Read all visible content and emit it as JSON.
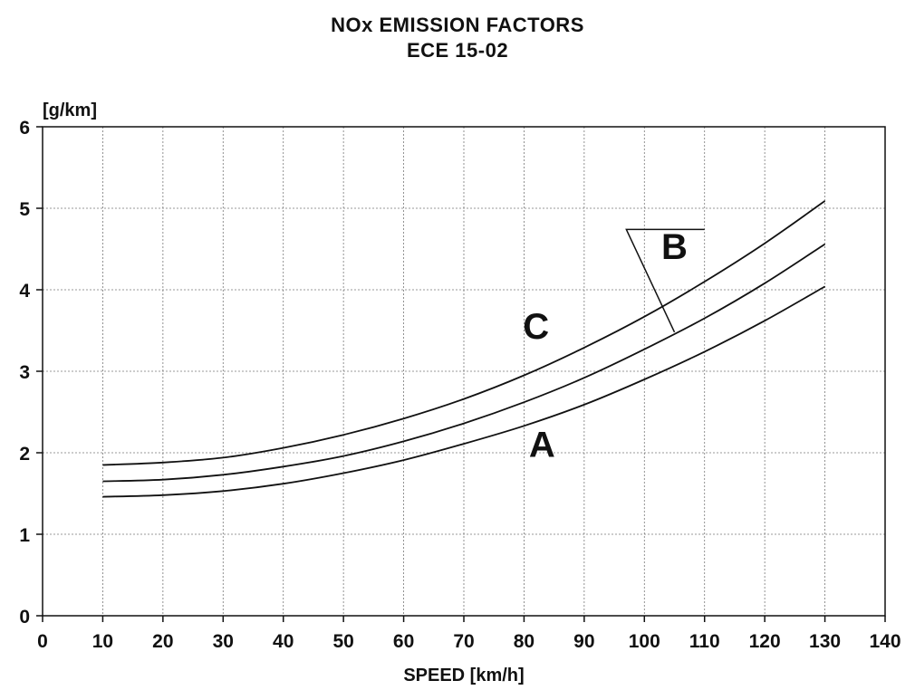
{
  "chart_data": {
    "type": "line",
    "title": "NOx EMISSION FACTORS",
    "subtitle": "ECE  15-02",
    "xlabel": "SPEED [km/h]",
    "ylabel": "[g/km]",
    "xlim": [
      0,
      140
    ],
    "ylim": [
      0,
      6
    ],
    "x_ticks": [
      0,
      10,
      20,
      30,
      40,
      50,
      60,
      70,
      80,
      90,
      100,
      110,
      120,
      130,
      140
    ],
    "y_ticks": [
      0,
      1,
      2,
      3,
      4,
      5,
      6
    ],
    "grid": true,
    "x": [
      10,
      20,
      30,
      40,
      50,
      60,
      70,
      80,
      90,
      100,
      110,
      120,
      130
    ],
    "series": [
      {
        "name": "A",
        "values": [
          1.46,
          1.48,
          1.53,
          1.62,
          1.75,
          1.91,
          2.11,
          2.33,
          2.59,
          2.9,
          3.24,
          3.62,
          4.04
        ],
        "color": "#111111"
      },
      {
        "name": "B",
        "values": [
          1.65,
          1.67,
          1.73,
          1.83,
          1.96,
          2.14,
          2.36,
          2.62,
          2.92,
          3.27,
          3.65,
          4.08,
          4.56
        ],
        "color": "#111111"
      },
      {
        "name": "C",
        "values": [
          1.85,
          1.88,
          1.94,
          2.06,
          2.22,
          2.42,
          2.66,
          2.95,
          3.29,
          3.67,
          4.1,
          4.57,
          5.09
        ],
        "color": "#111111"
      }
    ],
    "curve_labels": [
      {
        "text": "A",
        "x": 83,
        "y": 1.95
      },
      {
        "text": "B",
        "x": 105,
        "y": 4.38
      },
      {
        "text": "C",
        "x": 82,
        "y": 3.4
      }
    ],
    "leader_line": {
      "x1": 97,
      "y1": 4.74,
      "x2": 105,
      "y2": 3.48,
      "x3": 110,
      "y3": 4.74
    }
  }
}
